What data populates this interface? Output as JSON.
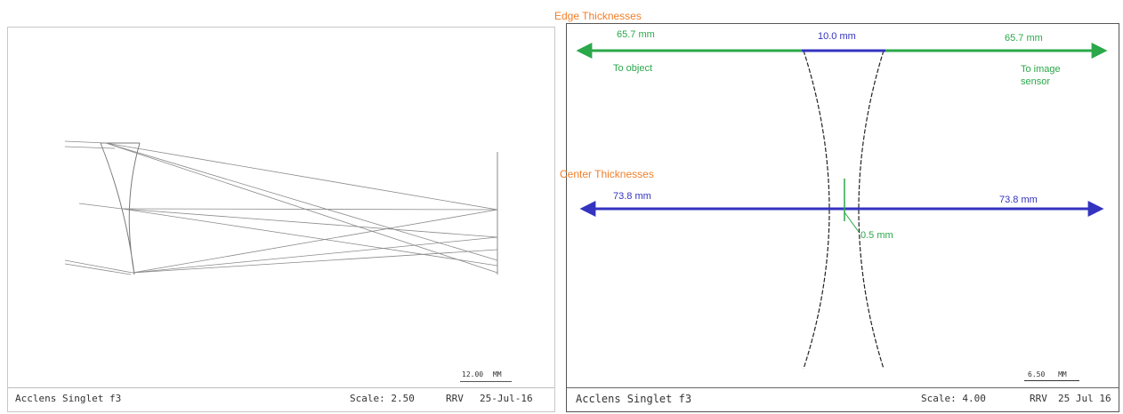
{
  "headings": {
    "edge": "Edge Thicknesses",
    "center": "Center Thicknesses"
  },
  "edge_dims": {
    "left_value": "65.7 mm",
    "middle_value": "10.0 mm",
    "right_value": "65.7 mm",
    "left_target": "To object",
    "right_target": "To image sensor"
  },
  "center_dims": {
    "left_value": "73.8 mm",
    "right_value": "73.8 mm",
    "center_value": "0.5 mm"
  },
  "left_footer": {
    "title": "Acclens Singlet f3",
    "scale": "Scale:  2.50",
    "initials": "RRV",
    "date": "25-Jul-16",
    "scale_bar_value": "12.00",
    "scale_bar_unit": "MM"
  },
  "right_footer": {
    "title": "Acclens Singlet f3",
    "scale": "Scale:  4.00",
    "initials": "RRV",
    "date": "25 Jul 16",
    "scale_bar_value": "6.50",
    "scale_bar_unit": "MM"
  },
  "colors": {
    "edge_arrow": "#2aa84a",
    "center_arrow": "#3333c0",
    "heading": "#f07f2a",
    "ray": "#8a8a8a"
  }
}
